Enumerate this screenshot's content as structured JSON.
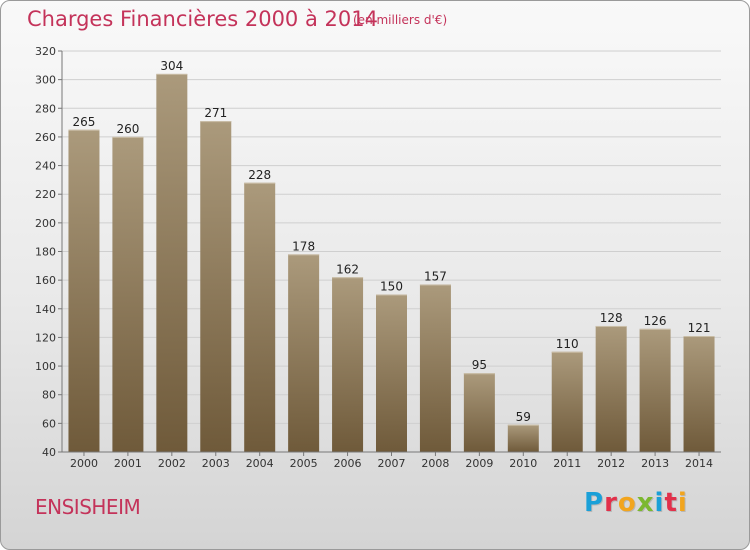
{
  "header": {
    "title": "Charges Financières 2000 à 2014",
    "unit": "(en milliers d'€)"
  },
  "footer": {
    "commune": "ENSISHEIM",
    "logo_letters": [
      "P",
      "r",
      "o",
      "x",
      "i",
      "t",
      "i"
    ]
  },
  "colors": {
    "title": "#c4335a",
    "bar_top": "#ab9a7c",
    "bar_bottom": "#6f5a3a",
    "logo": [
      "#1aa0d8",
      "#e2304a",
      "#f2a51e",
      "#7cb82f",
      "#1aa0d8",
      "#e2304a",
      "#f2a51e"
    ]
  },
  "chart_data": {
    "type": "bar",
    "title": "Charges Financières 2000 à 2014",
    "subtitle": "(en milliers d'€)",
    "categories": [
      "2000",
      "2001",
      "2002",
      "2003",
      "2004",
      "2005",
      "2006",
      "2007",
      "2008",
      "2009",
      "2010",
      "2011",
      "2012",
      "2013",
      "2014"
    ],
    "values": [
      265,
      260,
      304,
      271,
      228,
      178,
      162,
      150,
      157,
      95,
      59,
      110,
      128,
      126,
      121
    ],
    "ylim": [
      40,
      320
    ],
    "yticks": [
      40,
      60,
      80,
      100,
      120,
      140,
      160,
      180,
      200,
      220,
      240,
      260,
      280,
      300,
      320
    ],
    "grid": true,
    "legend": "none"
  }
}
